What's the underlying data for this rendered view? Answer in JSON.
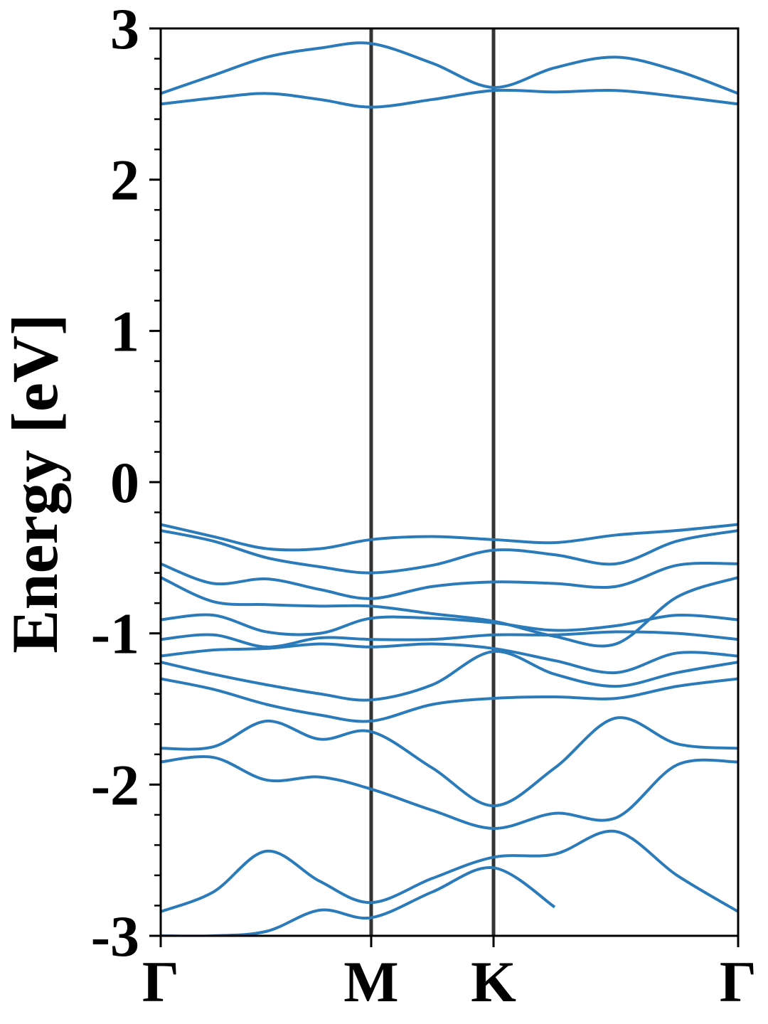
{
  "chart_data": {
    "type": "line",
    "ylabel": "Energy [eV]",
    "color": "#2b7bba",
    "x": [
      0,
      0.0911,
      0.1835,
      0.2759,
      0.3645,
      0.4704,
      0.5764,
      0.6823,
      0.7882,
      0.8941,
      1
    ],
    "xlim": [
      0,
      1
    ],
    "xticks": [
      {
        "value": 0,
        "label": "Γ"
      },
      {
        "value": 0.3645,
        "label": "M"
      },
      {
        "value": 0.5764,
        "label": "K"
      },
      {
        "value": 1,
        "label": "Γ"
      }
    ],
    "ylim": [
      -3,
      3
    ],
    "yticks": [
      -3,
      -2,
      -1,
      0,
      1,
      2,
      3
    ],
    "yminorticks": [
      -2.8,
      -2.6,
      -2.4,
      -2.2,
      -1.8,
      -1.6,
      -1.4,
      -1.2,
      -0.8,
      -0.6,
      -0.4,
      -0.2,
      0.2,
      0.4,
      0.6,
      0.8,
      1.2,
      1.4,
      1.6,
      1.8,
      2.2,
      2.4,
      2.6,
      2.8
    ],
    "series": [
      {
        "values": [
          2.57,
          2.69,
          2.81,
          2.87,
          2.9,
          2.77,
          2.61,
          2.74,
          2.81,
          2.72,
          2.57
        ]
      },
      {
        "values": [
          2.5,
          2.54,
          2.57,
          2.53,
          2.48,
          2.53,
          2.59,
          2.58,
          2.59,
          2.55,
          2.5
        ]
      },
      {
        "values": [
          -0.28,
          -0.36,
          -0.44,
          -0.44,
          -0.38,
          -0.36,
          -0.38,
          -0.4,
          -0.35,
          -0.32,
          -0.28
        ]
      },
      {
        "values": [
          -0.32,
          -0.39,
          -0.5,
          -0.56,
          -0.6,
          -0.55,
          -0.45,
          -0.48,
          -0.54,
          -0.39,
          -0.32
        ]
      },
      {
        "values": [
          -0.54,
          -0.67,
          -0.64,
          -0.71,
          -0.77,
          -0.69,
          -0.66,
          -0.67,
          -0.69,
          -0.55,
          -0.54
        ]
      },
      {
        "values": [
          -0.63,
          -0.79,
          -0.81,
          -0.82,
          -0.82,
          -0.87,
          -0.92,
          -1.02,
          -1.07,
          -0.76,
          -0.63
        ]
      },
      {
        "values": [
          -0.91,
          -0.88,
          -0.99,
          -1.0,
          -0.9,
          -0.9,
          -0.93,
          -0.98,
          -0.95,
          -0.88,
          -0.91
        ]
      },
      {
        "values": [
          -1.04,
          -1.01,
          -1.09,
          -1.03,
          -1.04,
          -1.04,
          -1.01,
          -1.01,
          -0.99,
          -1.0,
          -1.04
        ]
      },
      {
        "values": [
          -1.15,
          -1.11,
          -1.1,
          -1.07,
          -1.09,
          -1.07,
          -1.1,
          -1.18,
          -1.26,
          -1.13,
          -1.15
        ]
      },
      {
        "values": [
          -1.19,
          -1.27,
          -1.34,
          -1.4,
          -1.44,
          -1.34,
          -1.12,
          -1.27,
          -1.35,
          -1.26,
          -1.19
        ]
      },
      {
        "values": [
          -1.3,
          -1.37,
          -1.47,
          -1.54,
          -1.58,
          -1.47,
          -1.43,
          -1.42,
          -1.43,
          -1.35,
          -1.3
        ]
      },
      {
        "values": [
          -1.76,
          -1.75,
          -1.58,
          -1.7,
          -1.65,
          -1.89,
          -2.14,
          -1.89,
          -1.56,
          -1.73,
          -1.76
        ]
      },
      {
        "values": [
          -1.85,
          -1.82,
          -1.97,
          -1.95,
          -2.03,
          -2.17,
          -2.29,
          -2.19,
          -2.22,
          -1.87,
          -1.85
        ]
      },
      {
        "values": [
          -2.84,
          -2.71,
          -2.44,
          -2.64,
          -2.78,
          -2.62,
          -2.48,
          -2.46,
          -2.31,
          -2.6,
          -2.84
        ]
      },
      {
        "values": [
          -3.0,
          -3.0,
          -2.97,
          -2.83,
          -2.88,
          -2.71,
          -2.55,
          -2.81,
          null,
          null,
          null
        ]
      }
    ]
  }
}
